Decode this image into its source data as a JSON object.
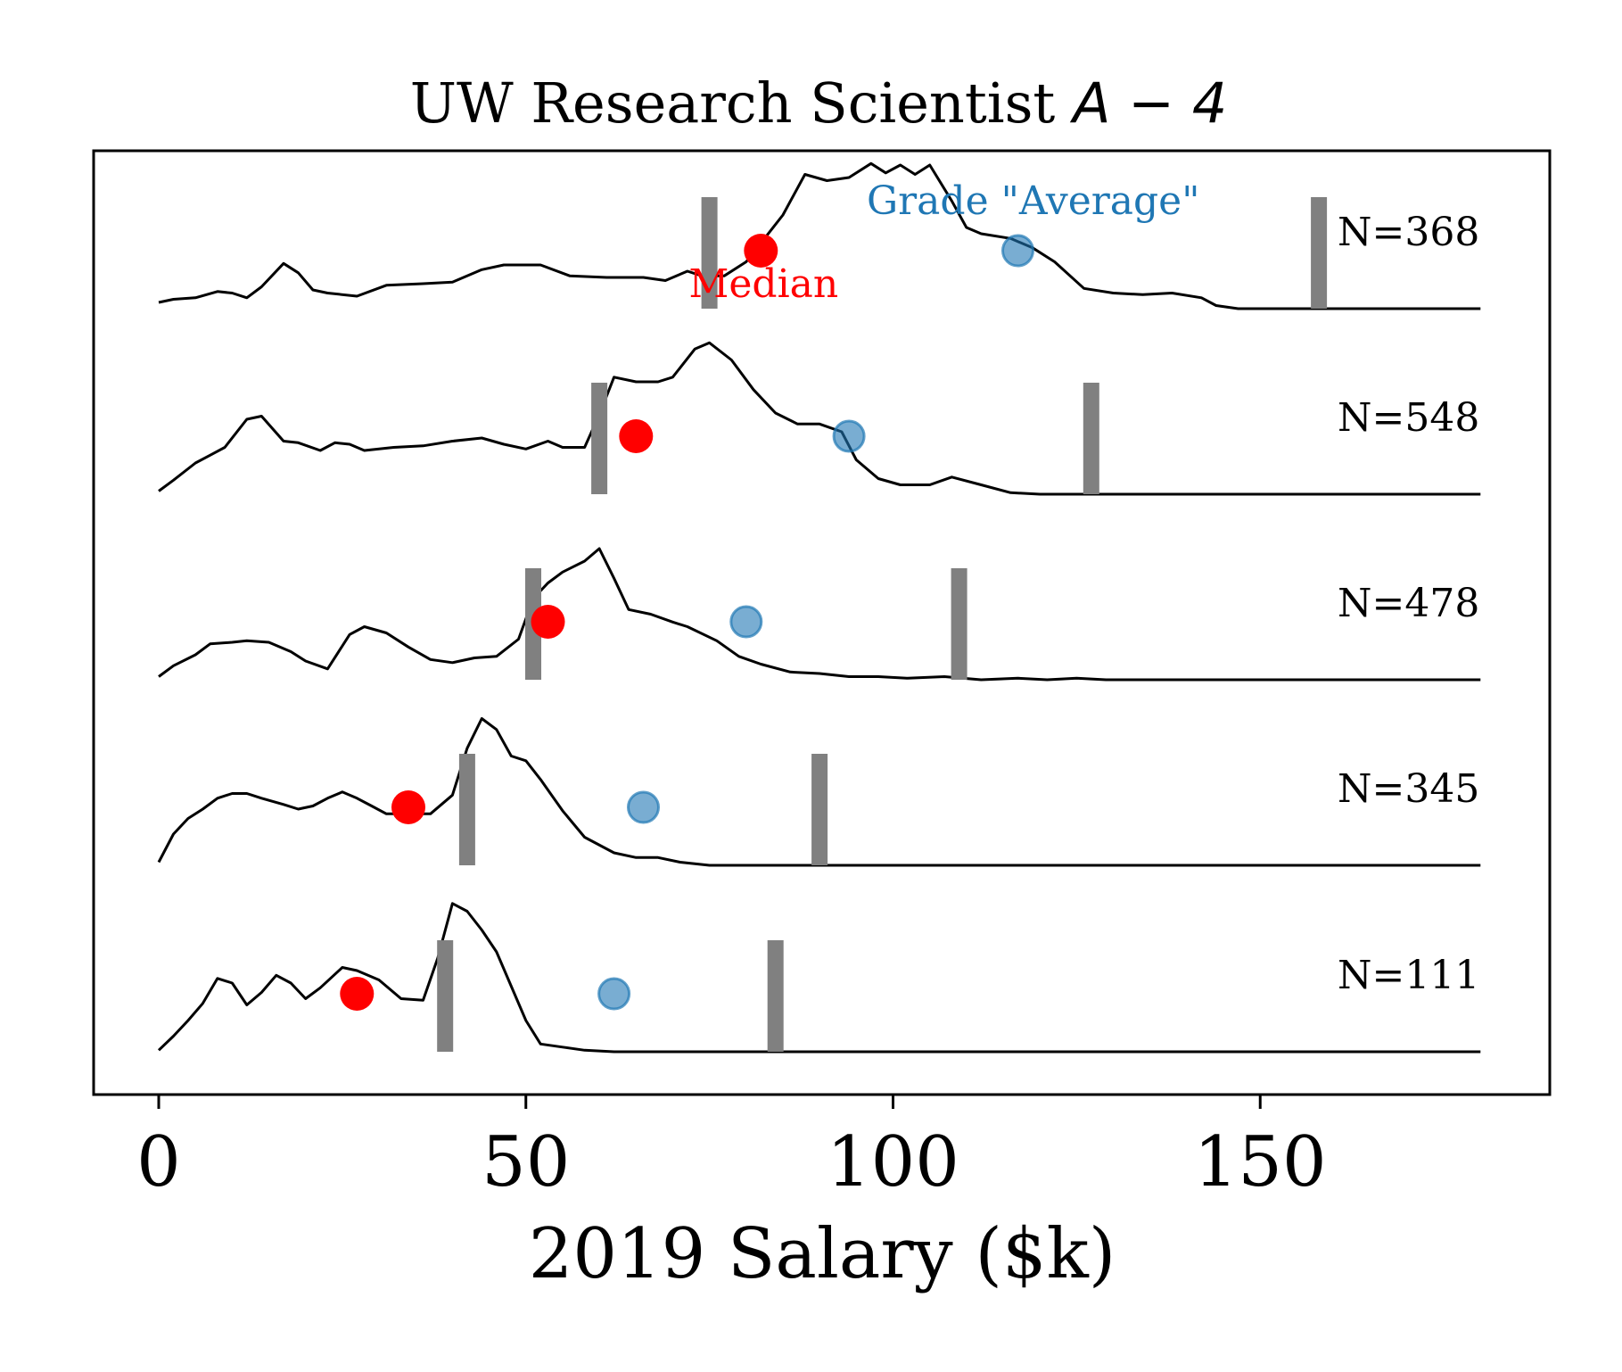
{
  "chart_data": {
    "type": "ridgeline",
    "title_text": "UW Research Scientist ",
    "title_math": "A − 4",
    "xlabel": "2019 Salary ($k)",
    "xlim": [
      -9,
      189
    ],
    "xticks": [
      0,
      50,
      100,
      150
    ],
    "colors": {
      "curve": "#000000",
      "median": "#ff0000",
      "average": "#1f77b4",
      "bounds": "#808080"
    },
    "annotations": {
      "median_label": "Median",
      "average_label": "Grade \"Average\""
    },
    "rows": [
      {
        "n_label": "N=368",
        "median": 82,
        "average": 117,
        "bound_low": 75,
        "bound_high": 158,
        "density": [
          [
            0,
            0.04
          ],
          [
            2,
            0.06
          ],
          [
            5,
            0.07
          ],
          [
            8,
            0.11
          ],
          [
            10,
            0.1
          ],
          [
            12,
            0.07
          ],
          [
            14,
            0.14
          ],
          [
            17,
            0.29
          ],
          [
            19,
            0.23
          ],
          [
            21,
            0.12
          ],
          [
            23,
            0.1
          ],
          [
            27,
            0.08
          ],
          [
            31,
            0.15
          ],
          [
            36,
            0.16
          ],
          [
            40,
            0.17
          ],
          [
            44,
            0.25
          ],
          [
            47,
            0.28
          ],
          [
            52,
            0.28
          ],
          [
            56,
            0.21
          ],
          [
            61,
            0.2
          ],
          [
            66,
            0.2
          ],
          [
            69,
            0.18
          ],
          [
            72,
            0.24
          ],
          [
            74,
            0.21
          ],
          [
            77,
            0.21
          ],
          [
            80,
            0.3
          ],
          [
            85,
            0.6
          ],
          [
            88,
            0.86
          ],
          [
            91,
            0.82
          ],
          [
            94,
            0.84
          ],
          [
            97,
            0.93
          ],
          [
            99,
            0.87
          ],
          [
            101,
            0.92
          ],
          [
            103,
            0.86
          ],
          [
            105,
            0.92
          ],
          [
            108,
            0.69
          ],
          [
            110,
            0.52
          ],
          [
            112,
            0.48
          ],
          [
            116,
            0.45
          ],
          [
            119,
            0.39
          ],
          [
            122,
            0.3
          ],
          [
            126,
            0.13
          ],
          [
            130,
            0.1
          ],
          [
            134,
            0.09
          ],
          [
            138,
            0.1
          ],
          [
            142,
            0.07
          ],
          [
            144,
            0.02
          ],
          [
            147,
            0.0
          ],
          [
            180,
            0.0
          ]
        ]
      },
      {
        "n_label": "N=548",
        "median": 65,
        "average": 94,
        "bound_low": 60,
        "bound_high": 127,
        "density": [
          [
            0,
            0.02
          ],
          [
            2,
            0.09
          ],
          [
            5,
            0.2
          ],
          [
            7,
            0.25
          ],
          [
            9,
            0.3
          ],
          [
            12,
            0.48
          ],
          [
            14,
            0.5
          ],
          [
            17,
            0.34
          ],
          [
            19,
            0.33
          ],
          [
            22,
            0.28
          ],
          [
            24,
            0.33
          ],
          [
            26,
            0.32
          ],
          [
            28,
            0.28
          ],
          [
            32,
            0.3
          ],
          [
            36,
            0.31
          ],
          [
            40,
            0.34
          ],
          [
            44,
            0.36
          ],
          [
            47,
            0.32
          ],
          [
            50,
            0.29
          ],
          [
            53,
            0.34
          ],
          [
            55,
            0.3
          ],
          [
            58,
            0.3
          ],
          [
            60,
            0.51
          ],
          [
            62,
            0.75
          ],
          [
            65,
            0.72
          ],
          [
            68,
            0.72
          ],
          [
            70,
            0.75
          ],
          [
            73,
            0.93
          ],
          [
            75,
            0.97
          ],
          [
            78,
            0.86
          ],
          [
            81,
            0.67
          ],
          [
            84,
            0.52
          ],
          [
            87,
            0.45
          ],
          [
            90,
            0.45
          ],
          [
            93,
            0.4
          ],
          [
            95,
            0.22
          ],
          [
            98,
            0.1
          ],
          [
            101,
            0.06
          ],
          [
            105,
            0.06
          ],
          [
            108,
            0.11
          ],
          [
            112,
            0.06
          ],
          [
            116,
            0.01
          ],
          [
            120,
            0.0
          ],
          [
            180,
            0.0
          ]
        ]
      },
      {
        "n_label": "N=478",
        "median": 53,
        "average": 80,
        "bound_low": 51,
        "bound_high": 109,
        "density": [
          [
            0,
            0.02
          ],
          [
            2,
            0.09
          ],
          [
            5,
            0.16
          ],
          [
            7,
            0.23
          ],
          [
            10,
            0.24
          ],
          [
            12,
            0.25
          ],
          [
            15,
            0.24
          ],
          [
            18,
            0.18
          ],
          [
            20,
            0.12
          ],
          [
            23,
            0.07
          ],
          [
            26,
            0.29
          ],
          [
            28,
            0.34
          ],
          [
            31,
            0.3
          ],
          [
            34,
            0.21
          ],
          [
            37,
            0.13
          ],
          [
            40,
            0.11
          ],
          [
            43,
            0.14
          ],
          [
            46,
            0.15
          ],
          [
            49,
            0.26
          ],
          [
            51,
            0.52
          ],
          [
            53,
            0.62
          ],
          [
            55,
            0.69
          ],
          [
            58,
            0.76
          ],
          [
            60,
            0.84
          ],
          [
            62,
            0.65
          ],
          [
            64,
            0.45
          ],
          [
            67,
            0.42
          ],
          [
            70,
            0.37
          ],
          [
            72,
            0.34
          ],
          [
            76,
            0.25
          ],
          [
            79,
            0.15
          ],
          [
            82,
            0.1
          ],
          [
            86,
            0.05
          ],
          [
            90,
            0.04
          ],
          [
            94,
            0.02
          ],
          [
            98,
            0.02
          ],
          [
            102,
            0.01
          ],
          [
            107,
            0.02
          ],
          [
            112,
            0.0
          ],
          [
            117,
            0.01
          ],
          [
            121,
            0.0
          ],
          [
            125,
            0.01
          ],
          [
            129,
            0.0
          ],
          [
            180,
            0.0
          ]
        ]
      },
      {
        "n_label": "N=345",
        "median": 34,
        "average": 66,
        "bound_low": 42,
        "bound_high": 90,
        "density": [
          [
            0,
            0.02
          ],
          [
            2,
            0.2
          ],
          [
            4,
            0.3
          ],
          [
            6,
            0.36
          ],
          [
            8,
            0.43
          ],
          [
            10,
            0.46
          ],
          [
            12,
            0.46
          ],
          [
            14,
            0.43
          ],
          [
            17,
            0.39
          ],
          [
            19,
            0.36
          ],
          [
            21,
            0.38
          ],
          [
            23,
            0.43
          ],
          [
            25,
            0.47
          ],
          [
            27,
            0.43
          ],
          [
            29,
            0.38
          ],
          [
            31,
            0.33
          ],
          [
            34,
            0.33
          ],
          [
            37,
            0.33
          ],
          [
            40,
            0.45
          ],
          [
            42,
            0.75
          ],
          [
            44,
            0.94
          ],
          [
            46,
            0.87
          ],
          [
            48,
            0.7
          ],
          [
            50,
            0.67
          ],
          [
            52,
            0.55
          ],
          [
            55,
            0.35
          ],
          [
            58,
            0.18
          ],
          [
            62,
            0.08
          ],
          [
            65,
            0.05
          ],
          [
            68,
            0.05
          ],
          [
            71,
            0.02
          ],
          [
            75,
            0.0
          ],
          [
            180,
            0.0
          ]
        ]
      },
      {
        "n_label": "N=111",
        "median": 27,
        "average": 62,
        "bound_low": 39,
        "bound_high": 84,
        "density": [
          [
            0,
            0.01
          ],
          [
            2,
            0.1
          ],
          [
            4,
            0.2
          ],
          [
            6,
            0.31
          ],
          [
            8,
            0.47
          ],
          [
            10,
            0.44
          ],
          [
            12,
            0.3
          ],
          [
            14,
            0.38
          ],
          [
            16,
            0.49
          ],
          [
            18,
            0.44
          ],
          [
            20,
            0.34
          ],
          [
            22,
            0.41
          ],
          [
            25,
            0.54
          ],
          [
            27,
            0.52
          ],
          [
            30,
            0.46
          ],
          [
            33,
            0.34
          ],
          [
            36,
            0.33
          ],
          [
            38,
            0.6
          ],
          [
            40,
            0.95
          ],
          [
            42,
            0.9
          ],
          [
            44,
            0.78
          ],
          [
            46,
            0.64
          ],
          [
            48,
            0.42
          ],
          [
            50,
            0.2
          ],
          [
            52,
            0.05
          ],
          [
            55,
            0.03
          ],
          [
            58,
            0.01
          ],
          [
            62,
            0.0
          ],
          [
            180,
            0.0
          ]
        ]
      }
    ]
  }
}
